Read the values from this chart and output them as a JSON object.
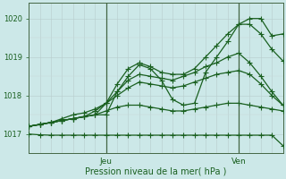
{
  "title": "",
  "xlabel": "Pression niveau de la mer( hPa )",
  "ylabel": "",
  "bg_color": "#cce8e8",
  "grid_color": "#b0c8c8",
  "line_color": "#1a6020",
  "ylim": [
    1016.5,
    1020.4
  ],
  "xlim": [
    0,
    23
  ],
  "yticks": [
    1017,
    1018,
    1019,
    1020
  ],
  "jeu_x": 7,
  "ven_x": 19,
  "series": [
    [
      1017.2,
      1017.25,
      1017.3,
      1017.35,
      1017.4,
      1017.45,
      1017.5,
      1017.5,
      1018.1,
      1018.5,
      1018.8,
      1018.7,
      1018.4,
      1017.9,
      1017.75,
      1017.8,
      1018.6,
      1019.0,
      1019.4,
      1019.85,
      1020.0,
      1020.0,
      1019.55,
      1019.6
    ],
    [
      1017.2,
      1017.25,
      1017.3,
      1017.35,
      1017.4,
      1017.45,
      1017.5,
      1017.8,
      1018.3,
      1018.7,
      1018.85,
      1018.75,
      1018.6,
      1018.55,
      1018.55,
      1018.7,
      1019.0,
      1019.3,
      1019.6,
      1019.85,
      1019.85,
      1019.6,
      1019.2,
      1018.9
    ],
    [
      1017.2,
      1017.25,
      1017.3,
      1017.35,
      1017.4,
      1017.45,
      1017.6,
      1017.8,
      1018.1,
      1018.4,
      1018.55,
      1018.5,
      1018.45,
      1018.4,
      1018.5,
      1018.6,
      1018.75,
      1018.85,
      1019.0,
      1019.1,
      1018.85,
      1018.5,
      1018.1,
      1017.75
    ],
    [
      1017.2,
      1017.25,
      1017.3,
      1017.4,
      1017.5,
      1017.55,
      1017.65,
      1017.8,
      1018.0,
      1018.2,
      1018.35,
      1018.3,
      1018.25,
      1018.2,
      1018.25,
      1018.35,
      1018.45,
      1018.55,
      1018.6,
      1018.65,
      1018.55,
      1018.3,
      1018.0,
      1017.75
    ],
    [
      1017.2,
      1017.25,
      1017.3,
      1017.35,
      1017.4,
      1017.45,
      1017.5,
      1017.6,
      1017.7,
      1017.75,
      1017.75,
      1017.7,
      1017.65,
      1017.6,
      1017.6,
      1017.65,
      1017.7,
      1017.75,
      1017.8,
      1017.8,
      1017.75,
      1017.7,
      1017.65,
      1017.6
    ],
    [
      1017.0,
      1016.98,
      1016.97,
      1016.97,
      1016.97,
      1016.97,
      1016.97,
      1016.97,
      1016.97,
      1016.97,
      1016.97,
      1016.97,
      1016.97,
      1016.97,
      1016.97,
      1016.97,
      1016.97,
      1016.97,
      1016.97,
      1016.97,
      1016.97,
      1016.97,
      1016.97,
      1016.7
    ]
  ],
  "num_points": 24,
  "marker_size": 2.0,
  "line_width": 0.9
}
